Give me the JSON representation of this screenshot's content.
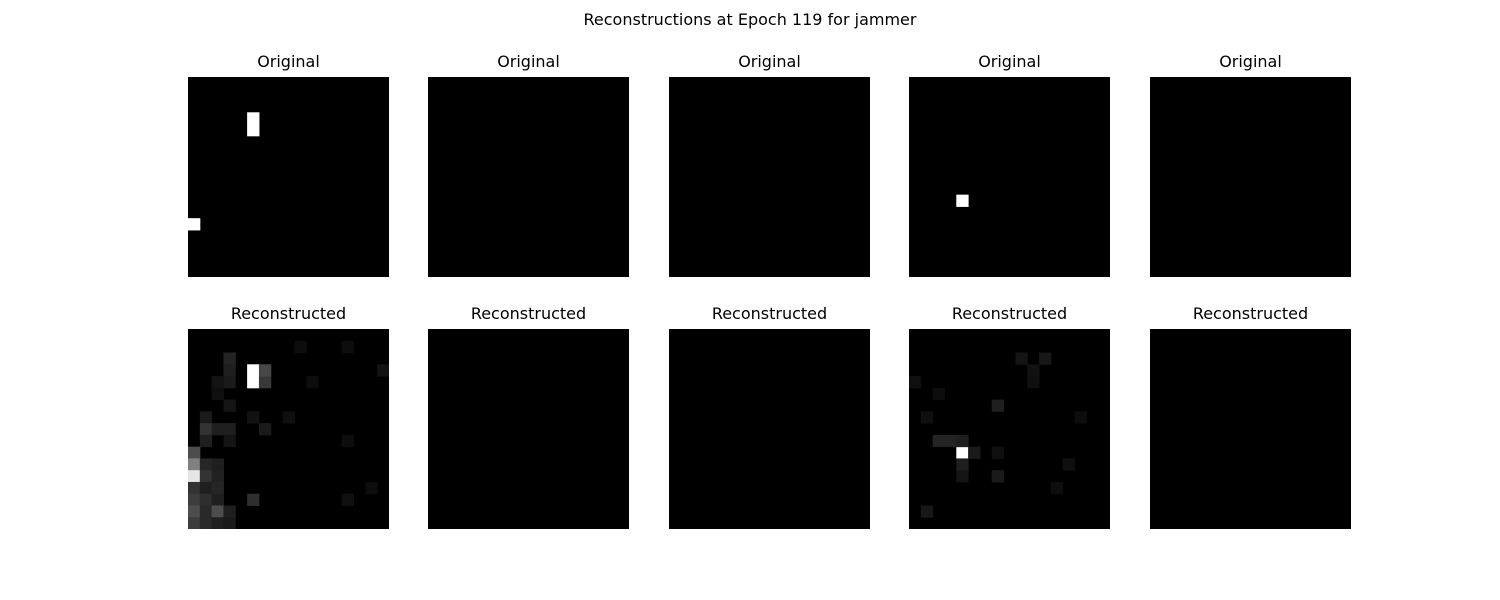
{
  "figure": {
    "title": "Reconstructions at Epoch 119 for jammer",
    "rows": [
      {
        "label": "Original",
        "images": [
          {
            "grid_size": 17,
            "cells": [
              [
                3,
                5,
                1.0
              ],
              [
                4,
                5,
                1.0
              ],
              [
                12,
                0,
                1.0
              ]
            ]
          },
          {
            "grid_size": 17,
            "cells": []
          },
          {
            "grid_size": 17,
            "cells": []
          },
          {
            "grid_size": 17,
            "cells": [
              [
                10,
                4,
                1.0
              ]
            ]
          },
          {
            "grid_size": 17,
            "cells": []
          }
        ]
      },
      {
        "label": "Reconstructed",
        "images": [
          {
            "grid_size": 17,
            "cells": [
              [
                3,
                5,
                1.0
              ],
              [
                4,
                5,
                1.0
              ],
              [
                4,
                6,
                0.22
              ],
              [
                3,
                6,
                0.28
              ],
              [
                2,
                3,
                0.14
              ],
              [
                3,
                3,
                0.12
              ],
              [
                4,
                3,
                0.1
              ],
              [
                4,
                2,
                0.08
              ],
              [
                5,
                2,
                0.06
              ],
              [
                6,
                3,
                0.08
              ],
              [
                7,
                1,
                0.1
              ],
              [
                8,
                1,
                0.2
              ],
              [
                8,
                2,
                0.12
              ],
              [
                9,
                1,
                0.12
              ],
              [
                10,
                0,
                0.3
              ],
              [
                11,
                0,
                0.5
              ],
              [
                11,
                1,
                0.15
              ],
              [
                11,
                2,
                0.12
              ],
              [
                12,
                0,
                0.9
              ],
              [
                12,
                1,
                0.2
              ],
              [
                12,
                2,
                0.13
              ],
              [
                13,
                0,
                0.2
              ],
              [
                13,
                1,
                0.12
              ],
              [
                13,
                2,
                0.15
              ],
              [
                14,
                0,
                0.24
              ],
              [
                14,
                1,
                0.18
              ],
              [
                14,
                2,
                0.12
              ],
              [
                14,
                5,
                0.18
              ],
              [
                15,
                0,
                0.3
              ],
              [
                15,
                1,
                0.16
              ],
              [
                15,
                2,
                0.3
              ],
              [
                15,
                3,
                0.12
              ],
              [
                16,
                0,
                0.24
              ],
              [
                16,
                1,
                0.16
              ],
              [
                16,
                2,
                0.12
              ],
              [
                16,
                3,
                0.1
              ],
              [
                8,
                3,
                0.12
              ],
              [
                7,
                5,
                0.07
              ],
              [
                9,
                3,
                0.08
              ],
              [
                8,
                6,
                0.1
              ],
              [
                7,
                8,
                0.06
              ],
              [
                1,
                9,
                0.05
              ],
              [
                1,
                13,
                0.05
              ],
              [
                3,
                16,
                0.07
              ],
              [
                4,
                10,
                0.05
              ],
              [
                9,
                13,
                0.05
              ],
              [
                14,
                13,
                0.06
              ],
              [
                13,
                15,
                0.05
              ]
            ]
          },
          {
            "grid_size": 17,
            "cells": []
          },
          {
            "grid_size": 17,
            "cells": []
          },
          {
            "grid_size": 17,
            "cells": [
              [
                10,
                4,
                1.0
              ],
              [
                9,
                2,
                0.14
              ],
              [
                9,
                3,
                0.14
              ],
              [
                9,
                4,
                0.12
              ],
              [
                10,
                5,
                0.1
              ],
              [
                11,
                4,
                0.12
              ],
              [
                6,
                7,
                0.12
              ],
              [
                2,
                9,
                0.08
              ],
              [
                2,
                11,
                0.09
              ],
              [
                3,
                10,
                0.07
              ],
              [
                4,
                10,
                0.06
              ],
              [
                4,
                0,
                0.06
              ],
              [
                5,
                2,
                0.05
              ],
              [
                7,
                1,
                0.06
              ],
              [
                12,
                4,
                0.08
              ],
              [
                12,
                7,
                0.1
              ],
              [
                15,
                1,
                0.09
              ],
              [
                11,
                13,
                0.06
              ],
              [
                13,
                12,
                0.05
              ],
              [
                7,
                14,
                0.05
              ],
              [
                10,
                7,
                0.06
              ]
            ]
          },
          {
            "grid_size": 17,
            "cells": []
          }
        ]
      }
    ]
  }
}
